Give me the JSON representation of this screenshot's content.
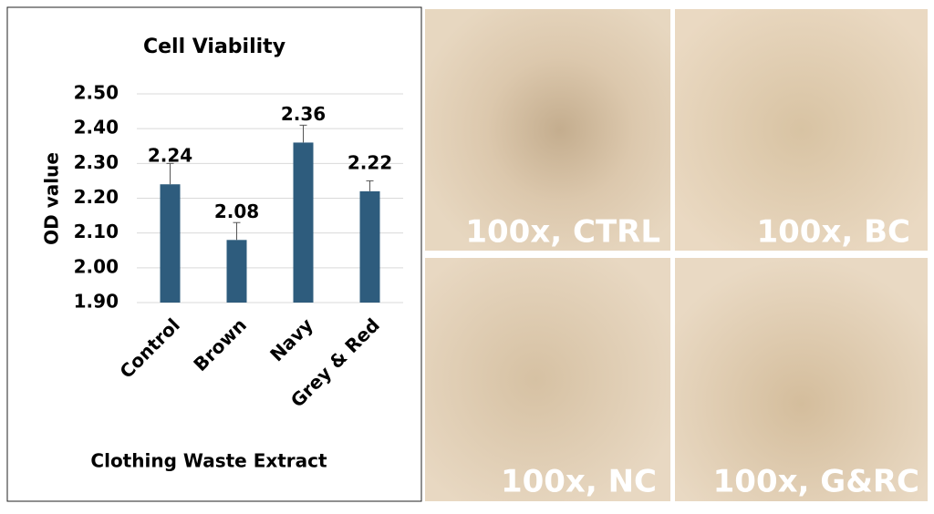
{
  "chart_data": {
    "type": "bar",
    "title": "Cell Viability",
    "y_label": "OD value",
    "x_label": "Clothing Waste Extract",
    "categories": [
      "Control",
      "Brown",
      "Navy",
      "Grey & Red"
    ],
    "values": [
      2.24,
      2.08,
      2.36,
      2.22
    ],
    "errors": [
      0.06,
      0.05,
      0.05,
      0.03
    ],
    "color": "#2e5c7d",
    "ylim": [
      1.9,
      2.5
    ],
    "yticks": [
      {
        "value": 1.9,
        "label": "1.90"
      },
      {
        "value": 2.0,
        "label": "2.00"
      },
      {
        "value": 2.1,
        "label": "2.10"
      },
      {
        "value": 2.2,
        "label": "2.20"
      },
      {
        "value": 2.3,
        "label": "2.30"
      },
      {
        "value": 2.4,
        "label": "2.40"
      },
      {
        "value": 2.5,
        "label": "2.50"
      }
    ],
    "grid": true
  },
  "micrographs": [
    {
      "label": "100x, CTRL"
    },
    {
      "label": "100x, BC"
    },
    {
      "label": "100x, NC"
    },
    {
      "label": "100x, G&RC"
    }
  ]
}
